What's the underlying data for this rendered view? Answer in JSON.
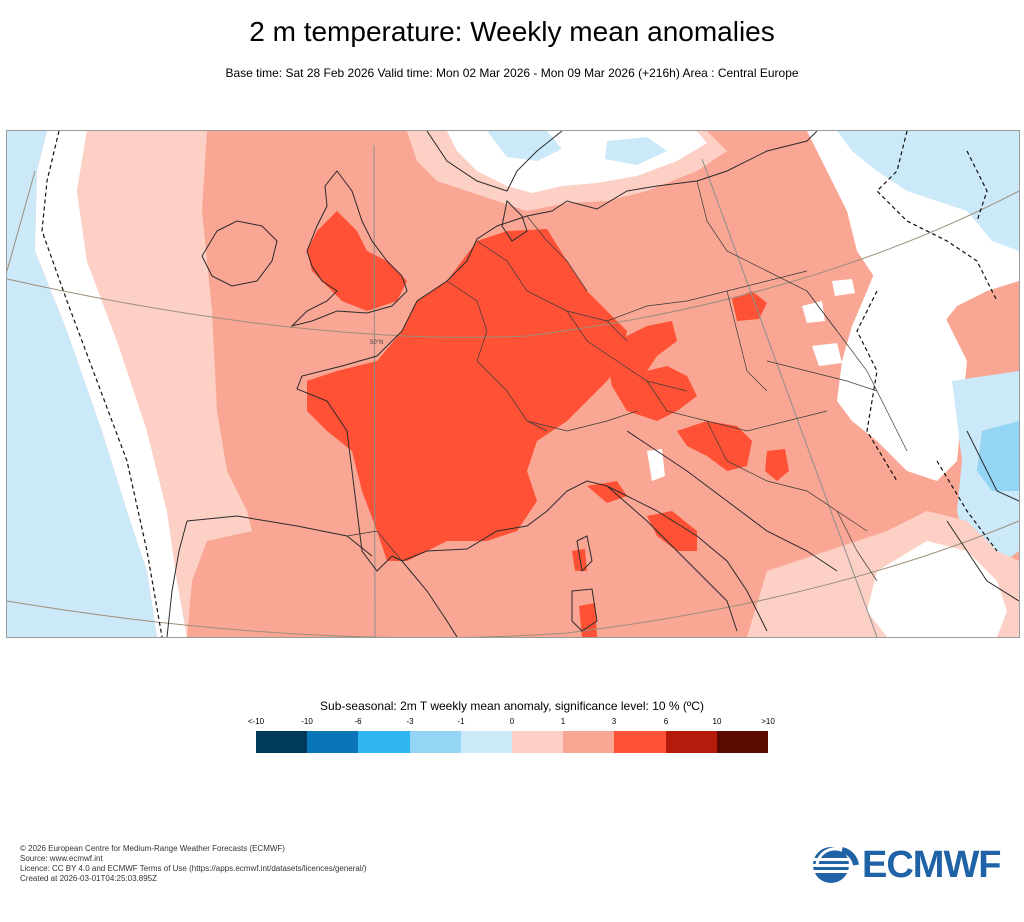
{
  "header": {
    "title": "2 m temperature: Weekly mean anomalies",
    "subtitle": "Base time: Sat 28 Feb 2026 Valid time: Mon 02 Mar 2026 - Mon 09 Mar 2026 (+216h) Area : Central Europe"
  },
  "map": {
    "area": "Central Europe",
    "latitude_label": "50°N"
  },
  "legend": {
    "title": "Sub-seasonal: 2m T weekly mean anomaly, significance level: 10 % (ºC)",
    "ticks": [
      "<-10",
      "-10",
      "-6",
      "-3",
      "-1",
      "0",
      "1",
      "3",
      "6",
      "10",
      ">10"
    ],
    "colors": [
      "#003a5a",
      "#0b76b7",
      "#2fb5f2",
      "#94d5f6",
      "#cbe9f9",
      "#ffffff",
      "#fdd0c6",
      "#f9a694",
      "#fe5135",
      "#b41b0a",
      "#5a0a00"
    ]
  },
  "footer": {
    "copyright": "© 2026 European Centre for Medium-Range Weather Forecasts (ECMWF)",
    "source": "Source: www.ecmwf.int",
    "licence": "Licence: CC BY 4.0 and ECMWF Terms of Use (https://apps.ecmwf.int/datasets/licences/general/)",
    "created": "Created at 2026-03-01T04:25:03.895Z"
  },
  "logo": {
    "text": "ECMWF",
    "color": "#1f63a6"
  }
}
